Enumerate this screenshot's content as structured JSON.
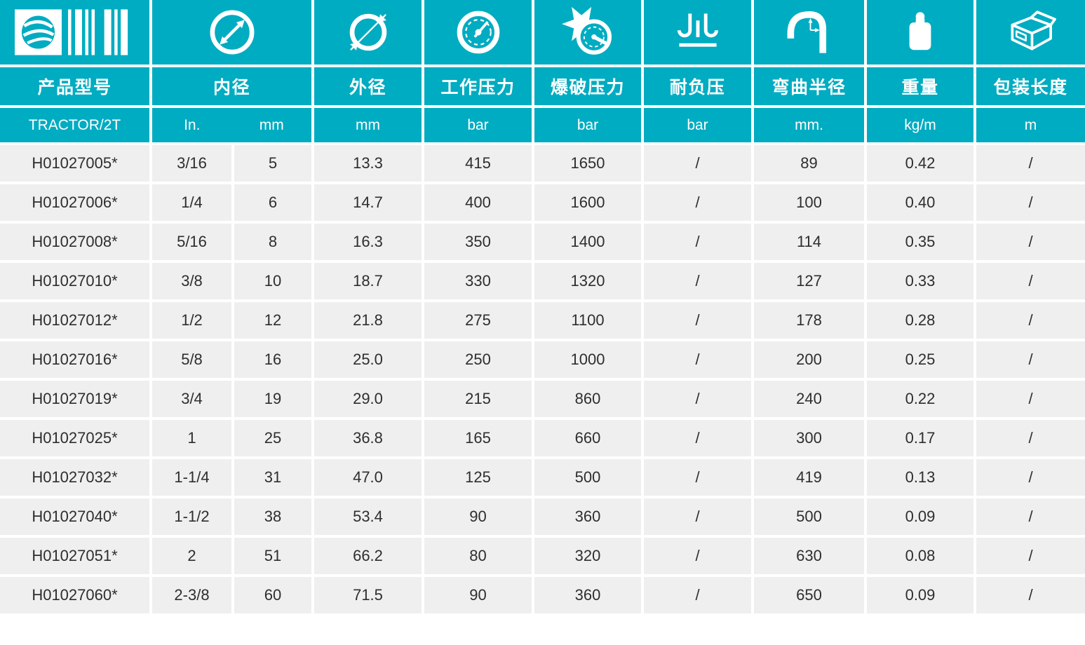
{
  "colors": {
    "accent": "#00ACC1",
    "row_bg": "#EFEFEF",
    "row_text": "#2E2E2E",
    "divider": "#FFFFFF",
    "header_text": "#FFFFFF"
  },
  "table": {
    "columns": [
      {
        "label": "产品型号",
        "icon": "logo-barcode-icon",
        "unit": "TRACTOR/2T"
      },
      {
        "label": "内径",
        "icon": "inner-diameter-icon",
        "units": [
          "In.",
          "mm"
        ]
      },
      {
        "label": "外径",
        "icon": "outer-diameter-icon",
        "unit": "mm"
      },
      {
        "label": "工作压力",
        "icon": "working-pressure-gauge-icon",
        "unit": "bar"
      },
      {
        "label": "爆破压力",
        "icon": "burst-pressure-icon",
        "unit": "bar"
      },
      {
        "label": "耐负压",
        "icon": "vacuum-resistance-icon",
        "unit": "bar"
      },
      {
        "label": "弯曲半径",
        "icon": "bend-radius-icon",
        "unit": "mm."
      },
      {
        "label": "重量",
        "icon": "weight-icon",
        "unit": "kg/m"
      },
      {
        "label": "包装长度",
        "icon": "package-length-icon",
        "unit": "m"
      }
    ],
    "rows": [
      [
        "H01027005*",
        "3/16",
        "5",
        "13.3",
        "415",
        "1650",
        "/",
        "89",
        "0.42",
        "/"
      ],
      [
        "H01027006*",
        "1/4",
        "6",
        "14.7",
        "400",
        "1600",
        "/",
        "100",
        "0.40",
        "/"
      ],
      [
        "H01027008*",
        "5/16",
        "8",
        "16.3",
        "350",
        "1400",
        "/",
        "114",
        "0.35",
        "/"
      ],
      [
        "H01027010*",
        "3/8",
        "10",
        "18.7",
        "330",
        "1320",
        "/",
        "127",
        "0.33",
        "/"
      ],
      [
        "H01027012*",
        "1/2",
        "12",
        "21.8",
        "275",
        "1100",
        "/",
        "178",
        "0.28",
        "/"
      ],
      [
        "H01027016*",
        "5/8",
        "16",
        "25.0",
        "250",
        "1000",
        "/",
        "200",
        "0.25",
        "/"
      ],
      [
        "H01027019*",
        "3/4",
        "19",
        "29.0",
        "215",
        "860",
        "/",
        "240",
        "0.22",
        "/"
      ],
      [
        "H01027025*",
        "1",
        "25",
        "36.8",
        "165",
        "660",
        "/",
        "300",
        "0.17",
        "/"
      ],
      [
        "H01027032*",
        "1-1/4",
        "31",
        "47.0",
        "125",
        "500",
        "/",
        "419",
        "0.13",
        "/"
      ],
      [
        "H01027040*",
        "1-1/2",
        "38",
        "53.4",
        "90",
        "360",
        "/",
        "500",
        "0.09",
        "/"
      ],
      [
        "H01027051*",
        "2",
        "51",
        "66.2",
        "80",
        "320",
        "/",
        "630",
        "0.08",
        "/"
      ],
      [
        "H01027060*",
        "2-3/8",
        "60",
        "71.5",
        "90",
        "360",
        "/",
        "650",
        "0.09",
        "/"
      ]
    ]
  }
}
